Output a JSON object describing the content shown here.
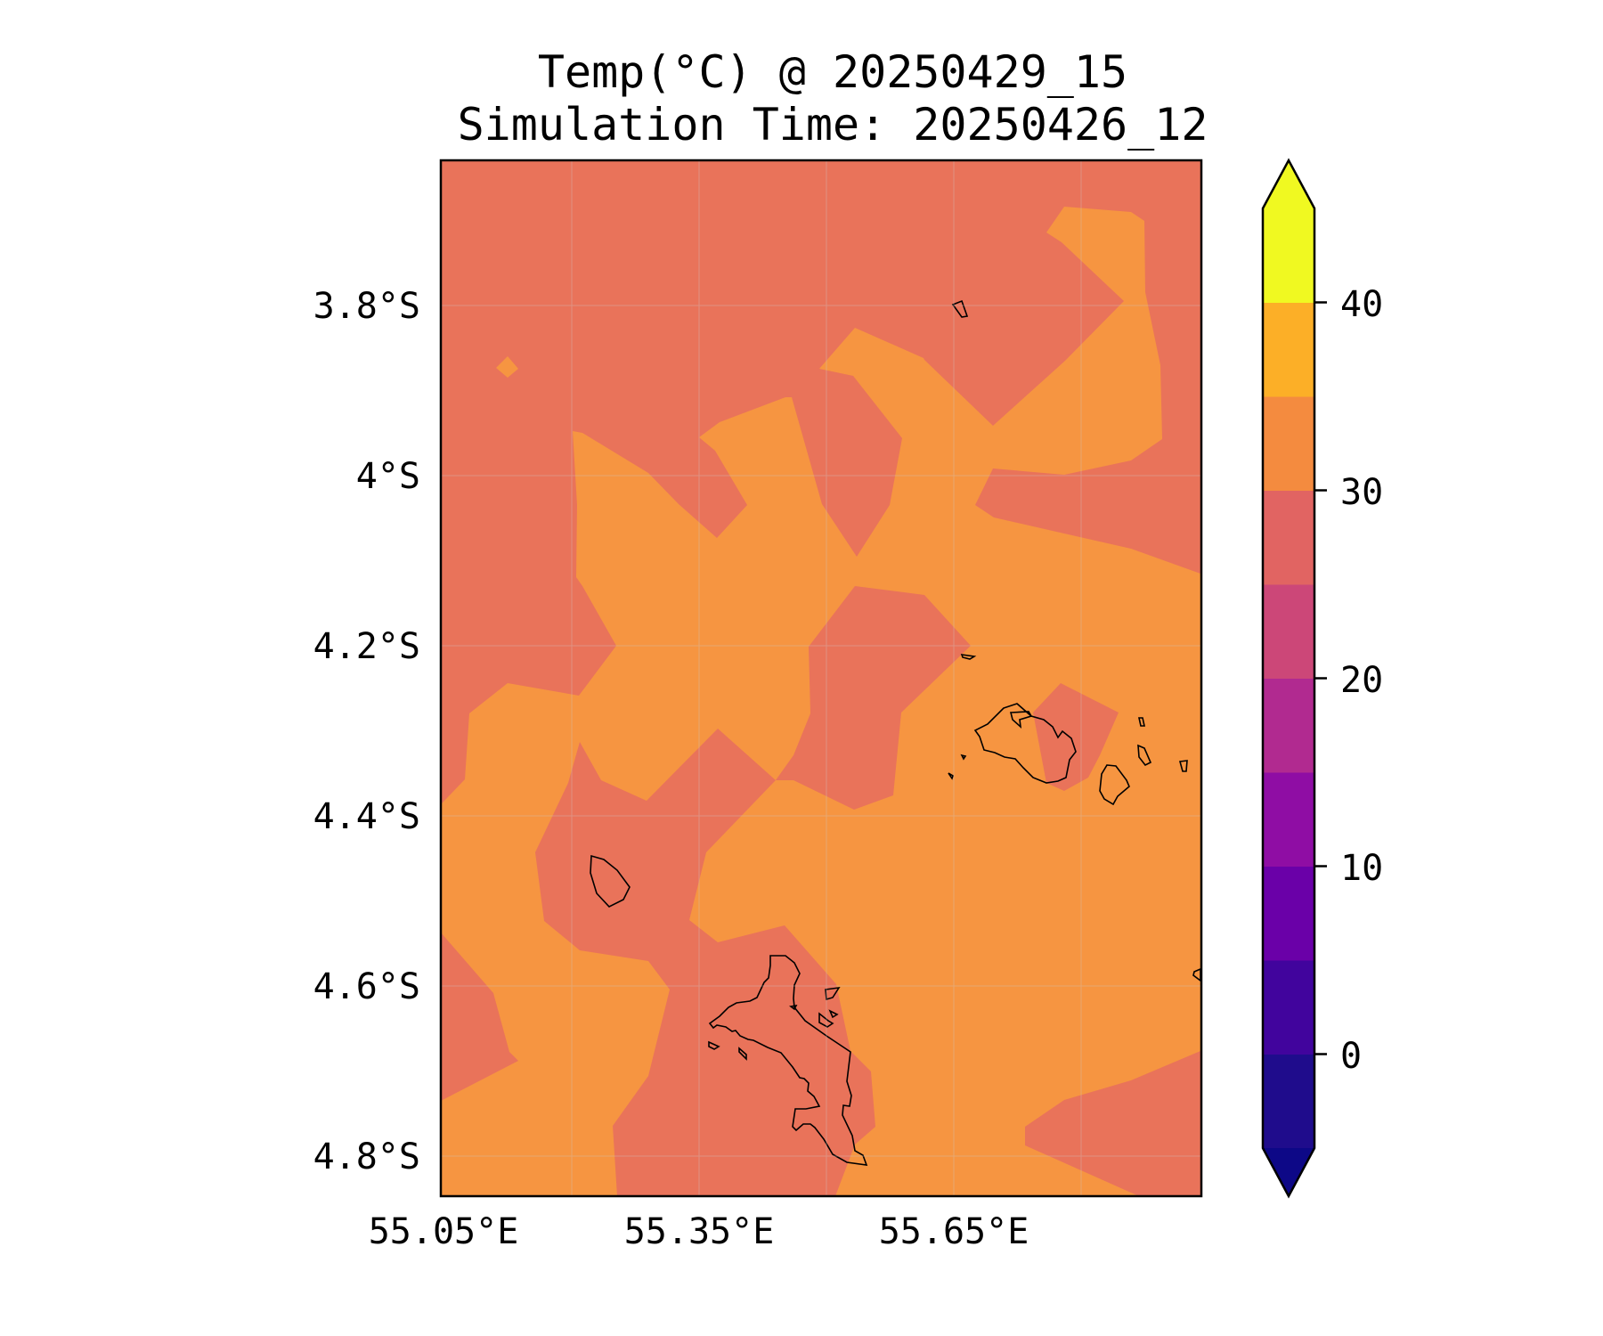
{
  "title": "Temp(°C) @ 20250429_15",
  "subtitle": "Simulation Time: 20250426_12",
  "chart_data": {
    "type": "contour",
    "variable": "Temp(°C)",
    "valid_time": "20250429_15",
    "simulation_time": "20250426_12",
    "x_ticks": [
      "55.05°E",
      "55.35°E",
      "55.65°E"
    ],
    "y_ticks": [
      "3.8°S",
      "4°S",
      "4.2°S",
      "4.4°S",
      "4.6°S",
      "4.8°S"
    ],
    "colorbar": {
      "ticks": [
        "0",
        "10",
        "20",
        "30",
        "40"
      ],
      "levels": [
        -5,
        0,
        5,
        10,
        15,
        20,
        25,
        30,
        35,
        40,
        45
      ],
      "colors": [
        "#1f0c8c",
        "#41049d",
        "#6a00a8",
        "#8f0da4",
        "#b12a90",
        "#cc4778",
        "#e16462",
        "#f48b3f",
        "#fcaf27",
        "#f0f921"
      ],
      "under_color": "#0d0887",
      "over_color": "#f0f921",
      "extend": "both"
    },
    "regions": [
      {
        "range": "25–30",
        "color": "#e9735a"
      },
      {
        "range": "30–35",
        "color": "#f69541"
      }
    ],
    "coastline_color": "#000000"
  }
}
